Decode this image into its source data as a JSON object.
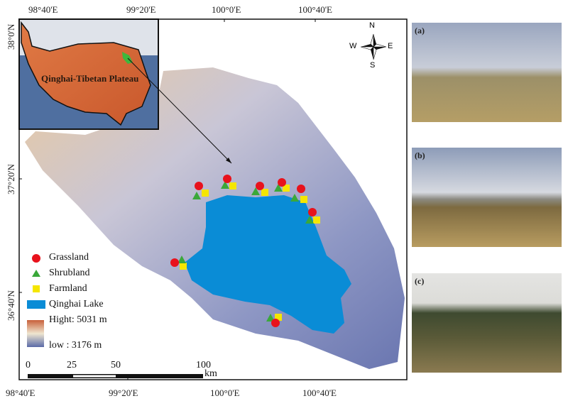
{
  "map": {
    "x_ticks_top": [
      "98°40'E",
      "99°20'E",
      "100°0'E",
      "100°40'E"
    ],
    "x_ticks_bottom": [
      "98°40'E",
      "99°20'E",
      "100°0'E",
      "100°40'E"
    ],
    "y_ticks": [
      "38°0'N",
      "37°20'N",
      "36°40'N"
    ],
    "inset_label": "Qinghai-Tibetan Plateau",
    "compass": {
      "n": "N",
      "s": "S",
      "e": "E",
      "w": "W"
    },
    "scale_bar": {
      "ticks": [
        "0",
        "25",
        "50",
        "100"
      ],
      "unit": "km"
    },
    "colors": {
      "lake": "#0a8cd6",
      "grassland": "#e8121c",
      "shrubland": "#3aa83a",
      "farmland": "#f5e600",
      "high": "#c8603a",
      "low": "#5a6aa8"
    }
  },
  "legend": {
    "grassland": "Grassland",
    "shrubland": "Shrubland",
    "farmland": "Farmland",
    "lake": "Qinghai Lake",
    "high": "Hight: 5031 m",
    "low": "low : 3176 m"
  },
  "photos": [
    {
      "label": "(a)"
    },
    {
      "label": "(b)"
    },
    {
      "label": "(c)"
    }
  ]
}
